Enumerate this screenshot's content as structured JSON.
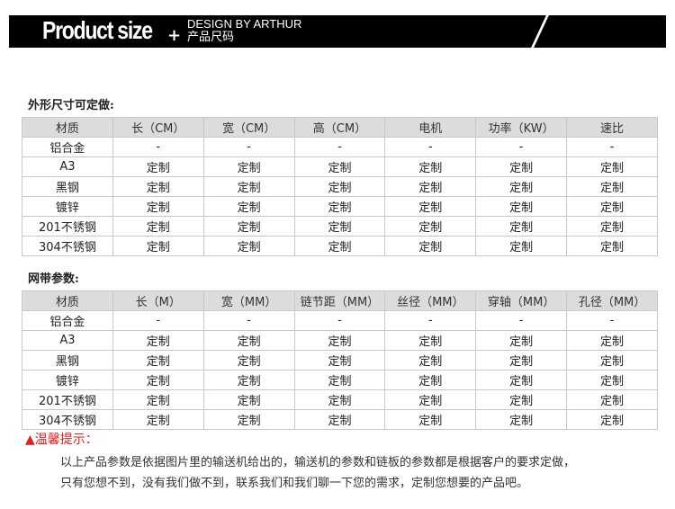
{
  "banner": {
    "title": "Product size",
    "plus": "+",
    "subtitle_en": "DESIGN BY ARTHUR",
    "subtitle_cn": "产品尺码"
  },
  "section1": {
    "heading": "外形尺寸可定做:",
    "headers": [
      "材质",
      "长（CM）",
      "宽（CM）",
      "高（CM）",
      "电机",
      "功率（KW）",
      "速比"
    ],
    "rows": [
      [
        "铝合金",
        "-",
        "-",
        "-",
        "-",
        "-",
        "-"
      ],
      [
        "A3",
        "定制",
        "定制",
        "定制",
        "定制",
        "定制",
        "定制"
      ],
      [
        "黑钢",
        "定制",
        "定制",
        "定制",
        "定制",
        "定制",
        "定制"
      ],
      [
        "镀锌",
        "定制",
        "定制",
        "定制",
        "定制",
        "定制",
        "定制"
      ],
      [
        "201不锈钢",
        "定制",
        "定制",
        "定制",
        "定制",
        "定制",
        "定制"
      ],
      [
        "304不锈钢",
        "定制",
        "定制",
        "定制",
        "定制",
        "定制",
        "定制"
      ]
    ]
  },
  "section2": {
    "heading": "网带参数:",
    "headers": [
      "材质",
      "长（M）",
      "宽（MM）",
      "链节距（MM）",
      "丝径（MM）",
      "穿轴（MM）",
      "孔径（MM）"
    ],
    "rows": [
      [
        "铝合金",
        "-",
        "-",
        "-",
        "-",
        "-",
        "-"
      ],
      [
        "A3",
        "定制",
        "定制",
        "定制",
        "定制",
        "定制",
        "定制"
      ],
      [
        "黑钢",
        "定制",
        "定制",
        "定制",
        "定制",
        "定制",
        "定制"
      ],
      [
        "镀锌",
        "定制",
        "定制",
        "定制",
        "定制",
        "定制",
        "定制"
      ],
      [
        "201不锈钢",
        "定制",
        "定制",
        "定制",
        "定制",
        "定制",
        "定制"
      ],
      [
        "304不锈钢",
        "定制",
        "定制",
        "定制",
        "定制",
        "定制",
        "定制"
      ]
    ]
  },
  "tip": {
    "label": "▲温馨提示：",
    "lines": [
      "以上产品参数是依据图片里的输送机给出的，输送机的参数和链板的参数都是根据客户的要求定做，",
      "只有您想不到，没有我们做不到，联系我们和我们聊一下您的需求，定制您想要的产品吧。"
    ]
  },
  "colors": {
    "banner": "#000000",
    "tip": "#e02020",
    "header_bg": "#dcdcdc"
  }
}
